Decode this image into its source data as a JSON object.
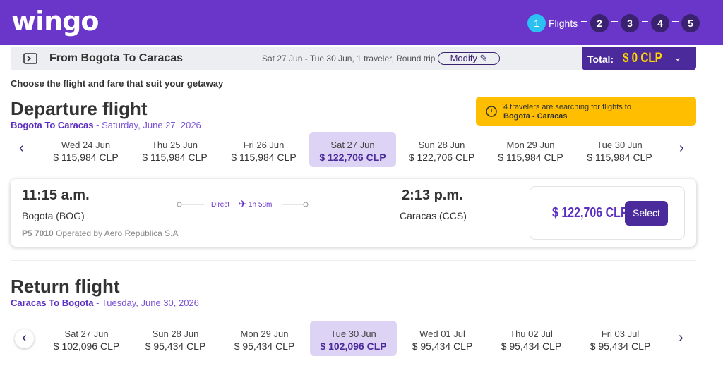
{
  "header": {
    "logo": "wingo",
    "steps": [
      {
        "number": "1",
        "label": "Flights",
        "active": true
      },
      {
        "number": "2"
      },
      {
        "number": "3"
      },
      {
        "number": "4"
      },
      {
        "number": "5"
      }
    ]
  },
  "summary": {
    "route": "From Bogota To Caracas",
    "details": "Sat 27 Jun - Tue 30 Jun, 1 traveler, Round trip",
    "modify": "Modify",
    "total_label": "Total:",
    "total_value": "$ 0 CLP"
  },
  "subtitle": "Choose the flight and fare that suit your getaway",
  "departure": {
    "title": "Departure flight",
    "route": "Bogota To Caracas",
    "date": "- Saturday, June 27, 2026",
    "notice": {
      "text": "4 travelers are searching for flights to",
      "route": "Bogota - Caracas"
    },
    "dates": [
      {
        "day": "Wed 24 Jun",
        "price": "$ 115,984 CLP"
      },
      {
        "day": "Thu 25 Jun",
        "price": "$ 115,984 CLP"
      },
      {
        "day": "Fri 26 Jun",
        "price": "$ 115,984 CLP"
      },
      {
        "day": "Sat 27 Jun",
        "price": "$ 122,706 CLP",
        "selected": true
      },
      {
        "day": "Sun 28 Jun",
        "price": "$ 122,706 CLP"
      },
      {
        "day": "Mon 29 Jun",
        "price": "$ 115,984 CLP"
      },
      {
        "day": "Tue 30 Jun",
        "price": "$ 115,984 CLP"
      }
    ],
    "flight": {
      "depart_time": "11:15 a.m.",
      "origin": "Bogota (BOG)",
      "stop": "Direct",
      "duration": "1h 58m",
      "arrive_time": "2:13 p.m.",
      "destination": "Caracas (CCS)",
      "flight_no": "P5 7010",
      "operator": "Operated by Aero República S.A",
      "price": "$ 122,706 CLP",
      "select": "Select"
    }
  },
  "return": {
    "title": "Return flight",
    "route": "Caracas To Bogota",
    "date": "- Tuesday, June 30, 2026",
    "dates": [
      {
        "day": "Sat 27 Jun",
        "price": "$ 102,096 CLP"
      },
      {
        "day": "Sun 28 Jun",
        "price": "$ 95,434 CLP"
      },
      {
        "day": "Mon 29 Jun",
        "price": "$ 95,434 CLP"
      },
      {
        "day": "Tue 30 Jun",
        "price": "$ 102,096 CLP",
        "selected": true
      },
      {
        "day": "Wed 01 Jul",
        "price": "$ 95,434 CLP"
      },
      {
        "day": "Thu 02 Jul",
        "price": "$ 95,434 CLP"
      },
      {
        "day": "Fri 03 Jul",
        "price": "$ 95,434 CLP"
      }
    ]
  }
}
